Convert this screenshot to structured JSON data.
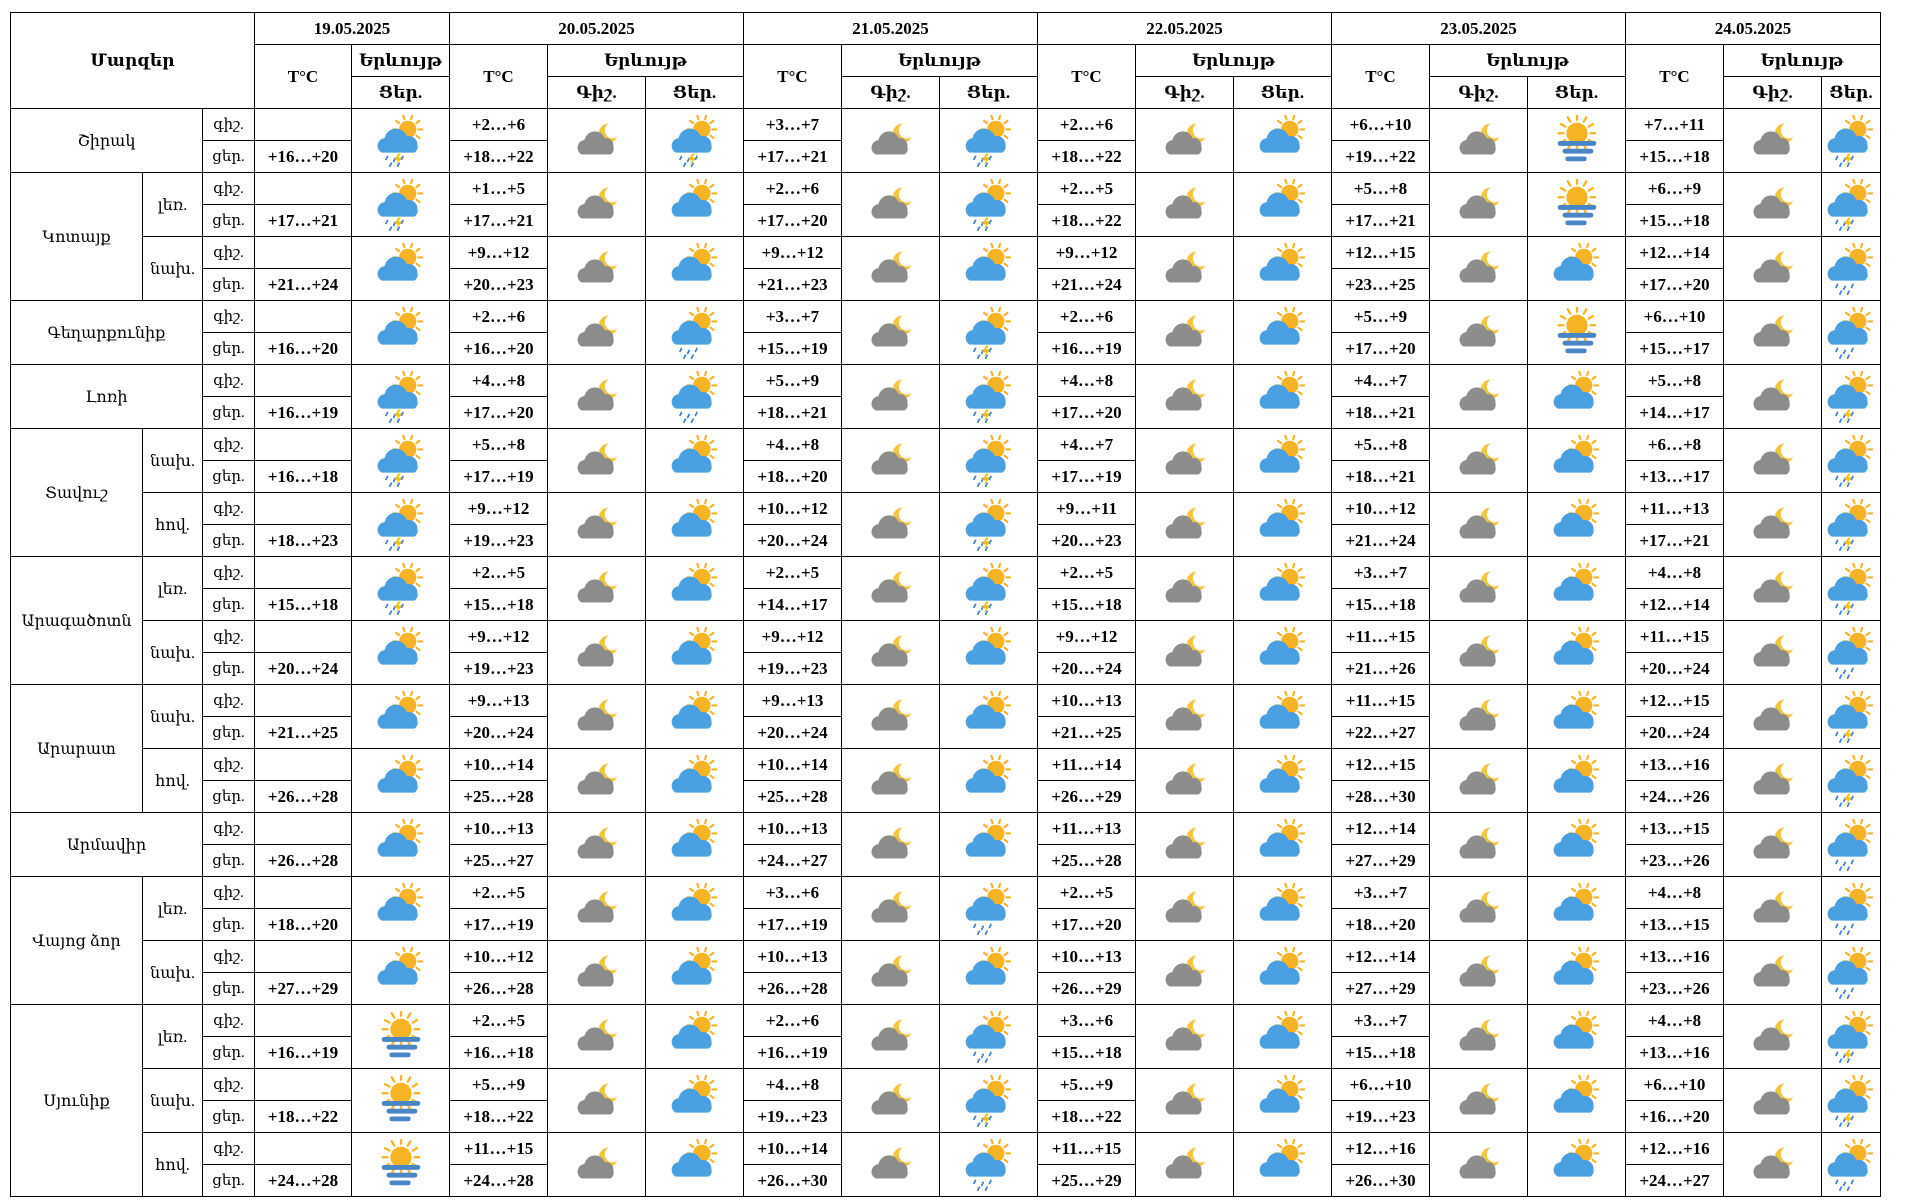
{
  "header": {
    "regions_label": "Մարզեր",
    "temp_label": "T°C",
    "phenomenon_label": "Երևույթ",
    "night_label": "Գիշ.",
    "day_label": "Ցեր.",
    "day_label_first": "Ցեր.",
    "dates": [
      "19.05.2025",
      "20.05.2025",
      "21.05.2025",
      "22.05.2025",
      "23.05.2025",
      "24.05.2025"
    ]
  },
  "rows": [
    {
      "region": "Շիրակ",
      "zone": "",
      "night_label": "գիշ.",
      "day_label": "ցեր.",
      "day1_temp": "+16…+20",
      "day1_icon": "sun-cloud-storm",
      "days": [
        {
          "night": "+2…+6",
          "day": "+18…+22",
          "icon_night": "night-cloud",
          "icon_day": "sun-cloud-storm"
        },
        {
          "night": "+3…+7",
          "day": "+17…+21",
          "icon_night": "night-cloud",
          "icon_day": "sun-cloud-storm"
        },
        {
          "night": "+2…+6",
          "day": "+18…+22",
          "icon_night": "night-cloud",
          "icon_day": "sun-cloud"
        },
        {
          "night": "+6…+10",
          "day": "+19…+22",
          "icon_night": "night-cloud",
          "icon_day": "sun-fog"
        },
        {
          "night": "+7…+11",
          "day": "+15…+18",
          "icon_night": "night-cloud",
          "icon_day": "sun-cloud-storm"
        }
      ]
    },
    {
      "region": "Կոտայք",
      "zone": "լեռ.",
      "night_label": "գիշ.",
      "day_label": "ցեր.",
      "day1_temp": "+17…+21",
      "day1_icon": "sun-cloud-storm",
      "days": [
        {
          "night": "+1…+5",
          "day": "+17…+21",
          "icon_night": "night-cloud",
          "icon_day": "sun-cloud"
        },
        {
          "night": "+2…+6",
          "day": "+17…+20",
          "icon_night": "night-cloud",
          "icon_day": "sun-cloud-storm"
        },
        {
          "night": "+2…+5",
          "day": "+18…+22",
          "icon_night": "night-cloud",
          "icon_day": "sun-cloud"
        },
        {
          "night": "+5…+8",
          "day": "+17…+21",
          "icon_night": "night-cloud",
          "icon_day": "sun-fog"
        },
        {
          "night": "+6…+9",
          "day": "+15…+18",
          "icon_night": "night-cloud",
          "icon_day": "sun-cloud-storm"
        }
      ]
    },
    {
      "region": "Կոտայք",
      "zone": "նախ.",
      "night_label": "գիշ.",
      "day_label": "ցեր.",
      "day1_temp": "+21…+24",
      "day1_icon": "sun-cloud",
      "days": [
        {
          "night": "+9…+12",
          "day": "+20…+23",
          "icon_night": "night-cloud",
          "icon_day": "sun-cloud"
        },
        {
          "night": "+9…+12",
          "day": "+21…+23",
          "icon_night": "night-cloud",
          "icon_day": "sun-cloud"
        },
        {
          "night": "+9…+12",
          "day": "+21…+24",
          "icon_night": "night-cloud",
          "icon_day": "sun-cloud"
        },
        {
          "night": "+12…+15",
          "day": "+23…+25",
          "icon_night": "night-cloud",
          "icon_day": "sun-cloud"
        },
        {
          "night": "+12…+14",
          "day": "+17…+20",
          "icon_night": "night-cloud",
          "icon_day": "sun-cloud-rain"
        }
      ]
    },
    {
      "region": "Գեղարքունիք",
      "zone": "",
      "night_label": "գիշ.",
      "day_label": "ցեր.",
      "day1_temp": "+16…+20",
      "day1_icon": "sun-cloud",
      "days": [
        {
          "night": "+2…+6",
          "day": "+16…+20",
          "icon_night": "night-cloud",
          "icon_day": "sun-cloud-rain"
        },
        {
          "night": "+3…+7",
          "day": "+15…+19",
          "icon_night": "night-cloud",
          "icon_day": "sun-cloud-storm"
        },
        {
          "night": "+2…+6",
          "day": "+16…+19",
          "icon_night": "night-cloud",
          "icon_day": "sun-cloud"
        },
        {
          "night": "+5…+9",
          "day": "+17…+20",
          "icon_night": "night-cloud",
          "icon_day": "sun-fog"
        },
        {
          "night": "+6…+10",
          "day": "+15…+17",
          "icon_night": "night-cloud",
          "icon_day": "sun-cloud-rain"
        }
      ]
    },
    {
      "region": "Լոռի",
      "zone": "",
      "night_label": "գիշ.",
      "day_label": "ցեր.",
      "day1_temp": "+16…+19",
      "day1_icon": "sun-cloud-storm",
      "days": [
        {
          "night": "+4…+8",
          "day": "+17…+20",
          "icon_night": "night-cloud",
          "icon_day": "sun-cloud-rain"
        },
        {
          "night": "+5…+9",
          "day": "+18…+21",
          "icon_night": "night-cloud",
          "icon_day": "sun-cloud-storm"
        },
        {
          "night": "+4…+8",
          "day": "+17…+20",
          "icon_night": "night-cloud",
          "icon_day": "sun-cloud"
        },
        {
          "night": "+4…+7",
          "day": "+18…+21",
          "icon_night": "night-cloud",
          "icon_day": "sun-cloud"
        },
        {
          "night": "+5…+8",
          "day": "+14…+17",
          "icon_night": "night-cloud",
          "icon_day": "sun-cloud-storm"
        }
      ]
    },
    {
      "region": "Տավուշ",
      "zone": "նախ.",
      "night_label": "գիշ.",
      "day_label": "ցեր.",
      "day1_temp": "+16…+18",
      "day1_icon": "sun-cloud-storm",
      "days": [
        {
          "night": "+5…+8",
          "day": "+17…+19",
          "icon_night": "night-cloud",
          "icon_day": "sun-cloud"
        },
        {
          "night": "+4…+8",
          "day": "+18…+20",
          "icon_night": "night-cloud",
          "icon_day": "sun-cloud-storm"
        },
        {
          "night": "+4…+7",
          "day": "+17…+19",
          "icon_night": "night-cloud",
          "icon_day": "sun-cloud"
        },
        {
          "night": "+5…+8",
          "day": "+18…+21",
          "icon_night": "night-cloud",
          "icon_day": "sun-cloud"
        },
        {
          "night": "+6…+8",
          "day": "+13…+17",
          "icon_night": "night-cloud",
          "icon_day": "sun-cloud-storm"
        }
      ]
    },
    {
      "region": "Տավուշ",
      "zone": "հով.",
      "night_label": "գիշ.",
      "day_label": "ցեր.",
      "day1_temp": "+18…+23",
      "day1_icon": "sun-cloud-storm",
      "days": [
        {
          "night": "+9…+12",
          "day": "+19…+23",
          "icon_night": "night-cloud",
          "icon_day": "sun-cloud"
        },
        {
          "night": "+10…+12",
          "day": "+20…+24",
          "icon_night": "night-cloud",
          "icon_day": "sun-cloud-storm"
        },
        {
          "night": "+9…+11",
          "day": "+20…+23",
          "icon_night": "night-cloud",
          "icon_day": "sun-cloud"
        },
        {
          "night": "+10…+12",
          "day": "+21…+24",
          "icon_night": "night-cloud",
          "icon_day": "sun-cloud"
        },
        {
          "night": "+11…+13",
          "day": "+17…+21",
          "icon_night": "night-cloud",
          "icon_day": "sun-cloud-storm"
        }
      ]
    },
    {
      "region": "Արագածոտն",
      "zone": "լեռ.",
      "night_label": "գիշ.",
      "day_label": "ցեր.",
      "day1_temp": "+15…+18",
      "day1_icon": "sun-cloud-storm",
      "days": [
        {
          "night": "+2…+5",
          "day": "+15…+18",
          "icon_night": "night-cloud",
          "icon_day": "sun-cloud"
        },
        {
          "night": "+2…+5",
          "day": "+14…+17",
          "icon_night": "night-cloud",
          "icon_day": "sun-cloud-storm"
        },
        {
          "night": "+2…+5",
          "day": "+15…+18",
          "icon_night": "night-cloud",
          "icon_day": "sun-cloud"
        },
        {
          "night": "+3…+7",
          "day": "+15…+18",
          "icon_night": "night-cloud",
          "icon_day": "sun-cloud"
        },
        {
          "night": "+4…+8",
          "day": "+12…+14",
          "icon_night": "night-cloud",
          "icon_day": "sun-cloud-storm"
        }
      ]
    },
    {
      "region": "Արագածոտն",
      "zone": "նախ.",
      "night_label": "գիշ.",
      "day_label": "ցեր.",
      "day1_temp": "+20…+24",
      "day1_icon": "sun-cloud",
      "days": [
        {
          "night": "+9…+12",
          "day": "+19…+23",
          "icon_night": "night-cloud",
          "icon_day": "sun-cloud"
        },
        {
          "night": "+9…+12",
          "day": "+19…+23",
          "icon_night": "night-cloud",
          "icon_day": "sun-cloud"
        },
        {
          "night": "+9…+12",
          "day": "+20…+24",
          "icon_night": "night-cloud",
          "icon_day": "sun-cloud"
        },
        {
          "night": "+11…+15",
          "day": "+21…+26",
          "icon_night": "night-cloud",
          "icon_day": "sun-cloud"
        },
        {
          "night": "+11…+15",
          "day": "+20…+24",
          "icon_night": "night-cloud",
          "icon_day": "sun-cloud-rain"
        }
      ]
    },
    {
      "region": "Արարատ",
      "zone": "նախ.",
      "night_label": "գիշ.",
      "day_label": "ցեր.",
      "day1_temp": "+21…+25",
      "day1_icon": "sun-cloud",
      "days": [
        {
          "night": "+9…+13",
          "day": "+20…+24",
          "icon_night": "night-cloud",
          "icon_day": "sun-cloud"
        },
        {
          "night": "+9…+13",
          "day": "+20…+24",
          "icon_night": "night-cloud",
          "icon_day": "sun-cloud"
        },
        {
          "night": "+10…+13",
          "day": "+21…+25",
          "icon_night": "night-cloud",
          "icon_day": "sun-cloud"
        },
        {
          "night": "+11…+15",
          "day": "+22…+27",
          "icon_night": "night-cloud",
          "icon_day": "sun-cloud"
        },
        {
          "night": "+12…+15",
          "day": "+20…+24",
          "icon_night": "night-cloud",
          "icon_day": "sun-cloud-storm"
        }
      ]
    },
    {
      "region": "Արարատ",
      "zone": "հով.",
      "night_label": "գիշ.",
      "day_label": "ցեր.",
      "day1_temp": "+26…+28",
      "day1_icon": "sun-cloud",
      "days": [
        {
          "night": "+10…+14",
          "day": "+25…+28",
          "icon_night": "night-cloud",
          "icon_day": "sun-cloud"
        },
        {
          "night": "+10…+14",
          "day": "+25…+28",
          "icon_night": "night-cloud",
          "icon_day": "sun-cloud"
        },
        {
          "night": "+11…+14",
          "day": "+26…+29",
          "icon_night": "night-cloud",
          "icon_day": "sun-cloud"
        },
        {
          "night": "+12…+15",
          "day": "+28…+30",
          "icon_night": "night-cloud",
          "icon_day": "sun-cloud"
        },
        {
          "night": "+13…+16",
          "day": "+24…+26",
          "icon_night": "night-cloud",
          "icon_day": "sun-cloud-storm"
        }
      ]
    },
    {
      "region": "Արմավիր",
      "zone": "",
      "night_label": "գիշ.",
      "day_label": "ցեր.",
      "day1_temp": "+26…+28",
      "day1_icon": "sun-cloud",
      "days": [
        {
          "night": "+10…+13",
          "day": "+25…+27",
          "icon_night": "night-cloud",
          "icon_day": "sun-cloud"
        },
        {
          "night": "+10…+13",
          "day": "+24…+27",
          "icon_night": "night-cloud",
          "icon_day": "sun-cloud"
        },
        {
          "night": "+11…+13",
          "day": "+25…+28",
          "icon_night": "night-cloud",
          "icon_day": "sun-cloud"
        },
        {
          "night": "+12…+14",
          "day": "+27…+29",
          "icon_night": "night-cloud",
          "icon_day": "sun-cloud"
        },
        {
          "night": "+13…+15",
          "day": "+23…+26",
          "icon_night": "night-cloud",
          "icon_day": "sun-cloud-rain"
        }
      ]
    },
    {
      "region": "Վայոց ձոր",
      "zone": "լեռ.",
      "night_label": "գիշ.",
      "day_label": "ցեր.",
      "day1_temp": "+18…+20",
      "day1_icon": "sun-cloud",
      "days": [
        {
          "night": "+2…+5",
          "day": "+17…+19",
          "icon_night": "night-cloud",
          "icon_day": "sun-cloud"
        },
        {
          "night": "+3…+6",
          "day": "+17…+19",
          "icon_night": "night-cloud",
          "icon_day": "sun-cloud-rain"
        },
        {
          "night": "+2…+5",
          "day": "+17…+20",
          "icon_night": "night-cloud",
          "icon_day": "sun-cloud"
        },
        {
          "night": "+3…+7",
          "day": "+18…+20",
          "icon_night": "night-cloud",
          "icon_day": "sun-cloud"
        },
        {
          "night": "+4…+8",
          "day": "+13…+15",
          "icon_night": "night-cloud",
          "icon_day": "sun-cloud-rain"
        }
      ]
    },
    {
      "region": "Վայոց ձոր",
      "zone": "նախ.",
      "night_label": "գիշ.",
      "day_label": "ցեր.",
      "day1_temp": "+27…+29",
      "day1_icon": "sun-cloud",
      "days": [
        {
          "night": "+10…+12",
          "day": "+26…+28",
          "icon_night": "night-cloud",
          "icon_day": "sun-cloud"
        },
        {
          "night": "+10…+13",
          "day": "+26…+28",
          "icon_night": "night-cloud",
          "icon_day": "sun-cloud"
        },
        {
          "night": "+10…+13",
          "day": "+26…+29",
          "icon_night": "night-cloud",
          "icon_day": "sun-cloud"
        },
        {
          "night": "+12…+14",
          "day": "+27…+29",
          "icon_night": "night-cloud",
          "icon_day": "sun-cloud"
        },
        {
          "night": "+13…+16",
          "day": "+23…+26",
          "icon_night": "night-cloud",
          "icon_day": "sun-cloud-rain"
        }
      ]
    },
    {
      "region": "Սյունիք",
      "zone": "լեռ.",
      "night_label": "գիշ.",
      "day_label": "ցեր.",
      "day1_temp": "+16…+19",
      "day1_icon": "sun-fog",
      "days": [
        {
          "night": "+2…+5",
          "day": "+16…+18",
          "icon_night": "night-cloud",
          "icon_day": "sun-cloud"
        },
        {
          "night": "+2…+6",
          "day": "+16…+19",
          "icon_night": "night-cloud",
          "icon_day": "sun-cloud-rain"
        },
        {
          "night": "+3…+6",
          "day": "+15…+18",
          "icon_night": "night-cloud",
          "icon_day": "sun-cloud"
        },
        {
          "night": "+3…+7",
          "day": "+15…+18",
          "icon_night": "night-cloud",
          "icon_day": "sun-cloud"
        },
        {
          "night": "+4…+8",
          "day": "+13…+16",
          "icon_night": "night-cloud",
          "icon_day": "sun-cloud-storm"
        }
      ]
    },
    {
      "region": "Սյունիք",
      "zone": "նախ.",
      "night_label": "գիշ.",
      "day_label": "ցեր.",
      "day1_temp": "+18…+22",
      "day1_icon": "sun-fog",
      "days": [
        {
          "night": "+5…+9",
          "day": "+18…+22",
          "icon_night": "night-cloud",
          "icon_day": "sun-cloud"
        },
        {
          "night": "+4…+8",
          "day": "+19…+23",
          "icon_night": "night-cloud",
          "icon_day": "sun-cloud-storm"
        },
        {
          "night": "+5…+9",
          "day": "+18…+22",
          "icon_night": "night-cloud",
          "icon_day": "sun-cloud"
        },
        {
          "night": "+6…+10",
          "day": "+19…+23",
          "icon_night": "night-cloud",
          "icon_day": "sun-cloud"
        },
        {
          "night": "+6…+10",
          "day": "+16…+20",
          "icon_night": "night-cloud",
          "icon_day": "sun-cloud-storm"
        }
      ]
    },
    {
      "region": "Սյունիք",
      "zone": "հով.",
      "night_label": "գիշ.",
      "day_label": "ցեր.",
      "day1_temp": "+24…+28",
      "day1_icon": "sun-fog",
      "days": [
        {
          "night": "+11…+15",
          "day": "+24…+28",
          "icon_night": "night-cloud",
          "icon_day": "sun-cloud"
        },
        {
          "night": "+10…+14",
          "day": "+26…+30",
          "icon_night": "night-cloud",
          "icon_day": "sun-cloud-rain"
        },
        {
          "night": "+11…+15",
          "day": "+25…+29",
          "icon_night": "night-cloud",
          "icon_day": "sun-cloud"
        },
        {
          "night": "+12…+16",
          "day": "+26…+30",
          "icon_night": "night-cloud",
          "icon_day": "sun-cloud"
        },
        {
          "night": "+12…+16",
          "day": "+24…+27",
          "icon_night": "night-cloud",
          "icon_day": "sun-cloud-rain"
        }
      ]
    }
  ],
  "colors": {
    "cloud_gray": "#8c8c8c",
    "cloud_blue": "#4a9fe0",
    "sun": "#f5b325",
    "moon": "#f4c542",
    "rain": "#3b7fd1",
    "lightning": "#f2c200",
    "fog": "#4a86c5"
  }
}
